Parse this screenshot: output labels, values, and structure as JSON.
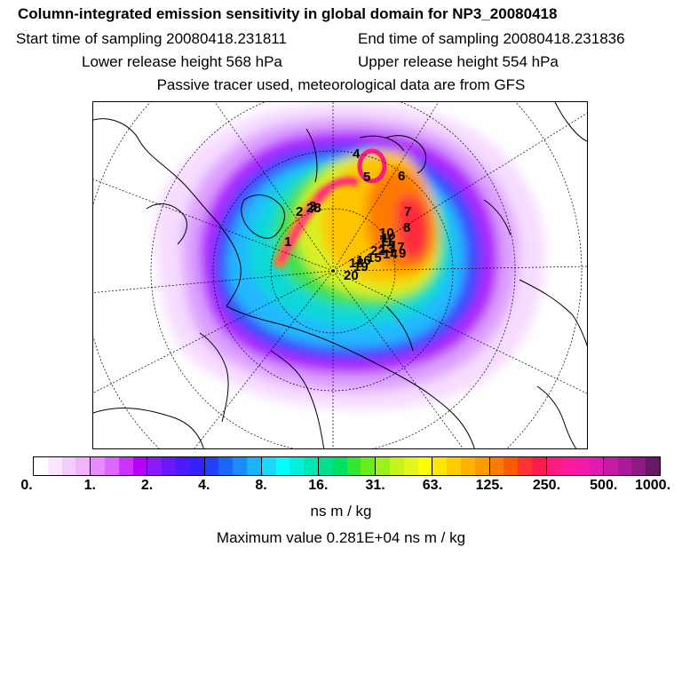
{
  "title": "Column-integrated emission sensitivity in global domain for NP3_20080418",
  "header": {
    "start_time": "Start time of sampling 20080418.231811",
    "end_time": "End time of sampling 20080418.231836",
    "lower_release": "Lower release height  568 hPa",
    "upper_release": "Upper release height  554 hPa",
    "tracer_note": "Passive tracer used, meteorological data are from GFS"
  },
  "map": {
    "track_labels": [
      "1",
      "2",
      "3",
      "4",
      "5",
      "6",
      "7",
      "8",
      "9",
      "10",
      "11",
      "12",
      "13",
      "14",
      "15",
      "16",
      "17",
      "18",
      "19",
      "20",
      "22",
      "28"
    ]
  },
  "colorbar": {
    "tick_labels": [
      "0.",
      "1.",
      "2.",
      "4.",
      "8.",
      "16.",
      "31.",
      "63.",
      "125.",
      "250.",
      "500.",
      "1000."
    ],
    "colors": [
      "#ffffff",
      "#fbe6ff",
      "#f5ccff",
      "#efb3ff",
      "#e68cff",
      "#dd66ff",
      "#cc33ff",
      "#b300ff",
      "#8c1aff",
      "#6619ff",
      "#4d1aff",
      "#3322ff",
      "#2240ff",
      "#1a66ff",
      "#1a8cff",
      "#1ab3ff",
      "#1ad9ff",
      "#00ffff",
      "#00f0dd",
      "#00e6b3",
      "#00e08c",
      "#00e060",
      "#33e633",
      "#66ee1a",
      "#99f21a",
      "#c6f41a",
      "#e6f51a",
      "#ffff00",
      "#ffe600",
      "#ffcc00",
      "#ffb300",
      "#ff9900",
      "#ff7a00",
      "#ff5a00",
      "#ff3333",
      "#ff1a4d",
      "#ff1a80",
      "#ff1a99",
      "#f21aa6",
      "#e01ab3",
      "#c61aa6",
      "#aa1a99",
      "#8c1a80",
      "#661a66"
    ],
    "unit": "ns m / kg"
  },
  "max_value": "Maximum value  0.281E+04 ns m / kg"
}
